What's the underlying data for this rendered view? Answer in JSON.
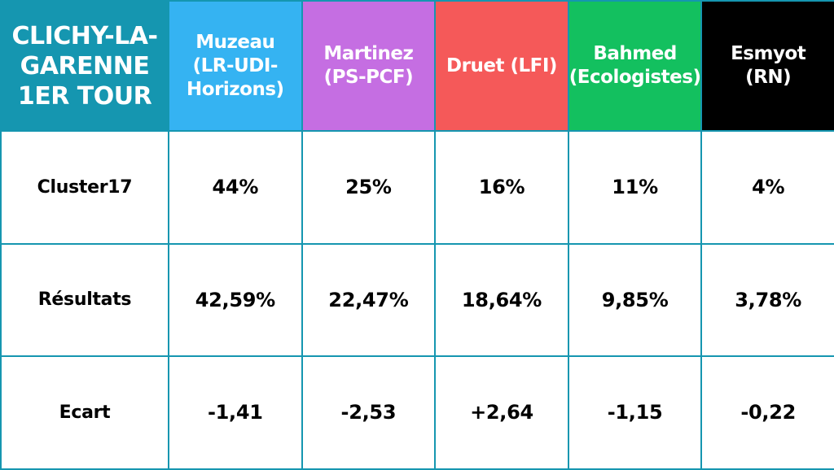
{
  "title": "CLICHY-LA-\nGARENNE\n1ER TOUR",
  "candidates": [
    {
      "label": "Muzeau\n(LR-UDI-\nHorizons)",
      "color": "#35b3f2"
    },
    {
      "label": "Martinez\n(PS-PCF)",
      "color": "#c56ee2"
    },
    {
      "label": "Druet (LFI)",
      "color": "#f55959"
    },
    {
      "label": "Bahmed\n(Ecologistes)",
      "color": "#13c05f"
    },
    {
      "label": "Esmyot\n(RN)",
      "color": "#000000"
    }
  ],
  "rows": [
    {
      "label": "Cluster17",
      "values": [
        "44%",
        "25%",
        "16%",
        "11%",
        "4%"
      ]
    },
    {
      "label": "Résultats",
      "values": [
        "42,59%",
        "22,47%",
        "18,64%",
        "9,85%",
        "3,78%"
      ]
    },
    {
      "label": "Ecart",
      "values": [
        "-1,41",
        "-2,53",
        "+2,64",
        "-1,15",
        "-0,22"
      ]
    }
  ],
  "colors": {
    "grid": "#1596b0",
    "title_bg": "#1596b0",
    "header_text": "#ffffff",
    "body_text": "#000000"
  }
}
